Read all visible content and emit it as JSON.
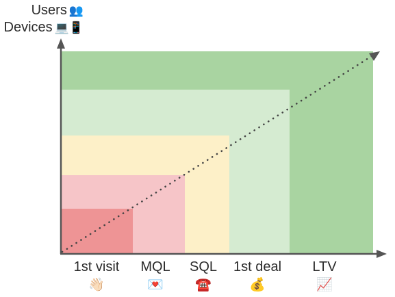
{
  "y_axis": {
    "line1": {
      "label": "Users",
      "icon": "👥"
    },
    "line2": {
      "label": "Devices",
      "icon": "💻📱"
    }
  },
  "colors": {
    "ltv": "#a9d4a1",
    "first_deal": "#d5ebd1",
    "sql": "#fdf0c8",
    "mql": "#f6c5c8",
    "first_visit": "#ee9495",
    "axis": "#555555",
    "trend": "#444444"
  },
  "stages": [
    {
      "label": "1st visit",
      "icon": "👋🏻"
    },
    {
      "label": "MQL",
      "icon": "💌"
    },
    {
      "label": "SQL",
      "icon": "☎️"
    },
    {
      "label": "1st deal",
      "icon": "💰"
    },
    {
      "label": "LTV",
      "icon": "📈"
    }
  ]
}
